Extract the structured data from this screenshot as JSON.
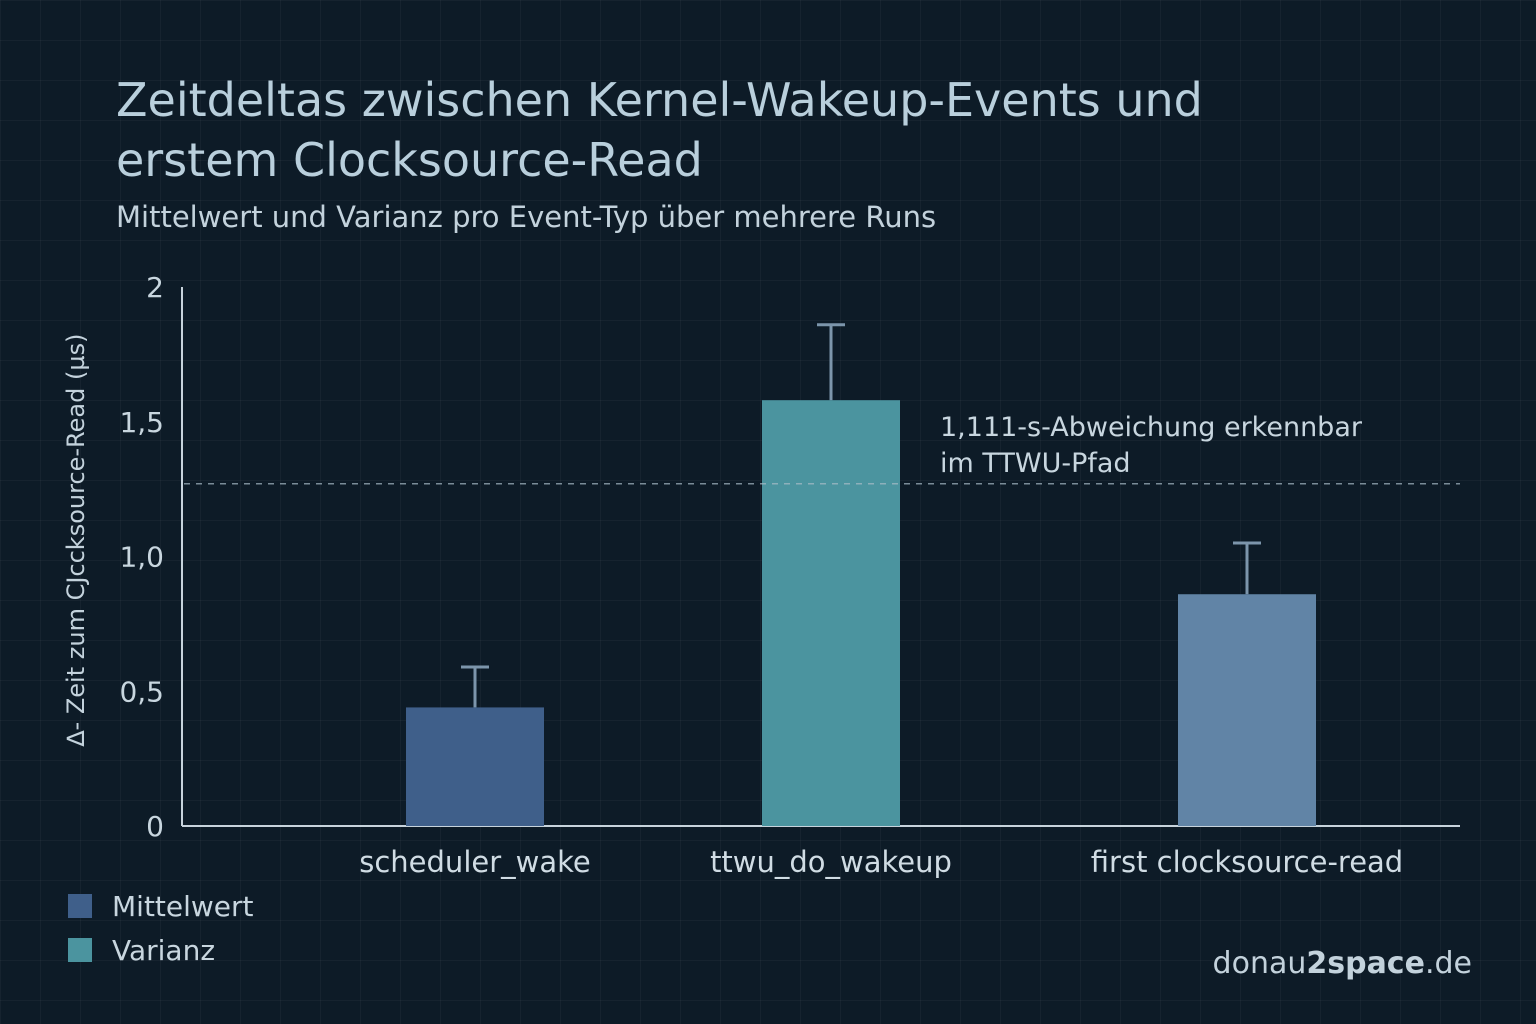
{
  "chart_data": {
    "type": "bar",
    "title_line1": "Zeitdeltas zwischen Kernel-Wakeup-Events und",
    "title_line2": "erstem Clocksource-Read",
    "subtitle": "Mittelwert und Varianz pro Event-Typ über mehrere Runs",
    "ylabel": "∆- Zeit zum CJccksource-Read (µs)",
    "xlabel": "",
    "ylim": [
      0,
      2
    ],
    "yticks": [
      {
        "value": 0,
        "label": "0"
      },
      {
        "value": 0.5,
        "label": "0,5"
      },
      {
        "value": 1.0,
        "label": "1,0"
      },
      {
        "value": 1.5,
        "label": "1,5"
      },
      {
        "value": 2,
        "label": "2"
      }
    ],
    "categories": [
      "scheduler_wake",
      "ttwu_do_wakeup",
      "first clocksource-read"
    ],
    "series": [
      {
        "name": "Mittelwert",
        "values": [
          0.44,
          1.58,
          0.86
        ]
      },
      {
        "name": "Varianz",
        "values": [
          0.15,
          0.28,
          0.19
        ]
      }
    ],
    "bar_colors": [
      "#3f5f8a",
      "#4b949f",
      "#6184a6"
    ],
    "reference_line": {
      "value": 1.27
    },
    "annotation_line1": "1,111-s-Abweichung erkennbar",
    "annotation_line2": "im TTWU-Pfad",
    "grid": false,
    "legend_position": "bottom-left"
  },
  "legend": {
    "items": [
      {
        "label": "Mittelwert",
        "color": "#3f5f8a"
      },
      {
        "label": "Varianz",
        "color": "#4b949f"
      }
    ]
  },
  "brand": {
    "prefix": "donau",
    "bold": "2space",
    "suffix": ".de"
  }
}
